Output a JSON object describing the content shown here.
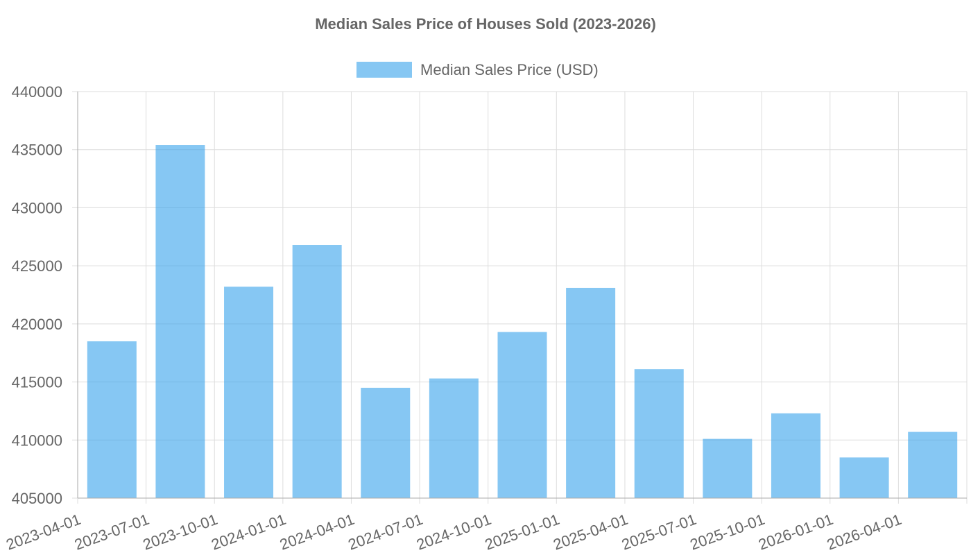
{
  "chart_data": {
    "type": "bar",
    "title": "Median Sales Price of Houses Sold (2023-2026)",
    "xlabel": "",
    "ylabel": "",
    "categories": [
      "2023-04-01",
      "2023-07-01",
      "2023-10-01",
      "2024-01-01",
      "2024-04-01",
      "2024-07-01",
      "2024-10-01",
      "2025-01-01",
      "2025-04-01",
      "2025-07-01",
      "2025-10-01",
      "2026-01-01",
      "2026-04-01"
    ],
    "series": [
      {
        "name": "Median Sales Price (USD)",
        "values": [
          418500,
          435400,
          423200,
          426800,
          414500,
          415300,
          419300,
          423100,
          416100,
          410100,
          412300,
          408500,
          410700
        ],
        "color": "#36A2EB"
      }
    ],
    "ylim": [
      405000,
      440000
    ],
    "yticks": [
      "405000",
      "410000",
      "415000",
      "420000",
      "425000",
      "430000",
      "435000",
      "440000"
    ],
    "grid": true,
    "legend_position": "top"
  }
}
